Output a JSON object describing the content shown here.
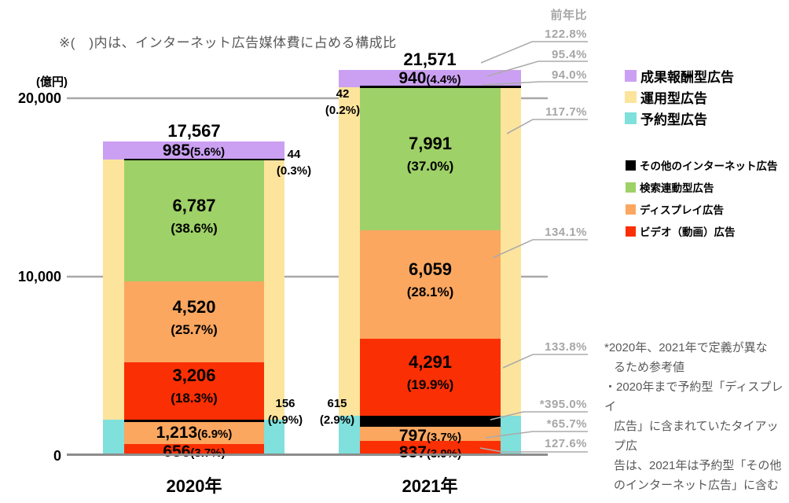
{
  "note": "※(　)内は、インターネット広告媒体費に占める構成比",
  "y_axis": {
    "unit": "(億円)"
  },
  "yoy": {
    "header": "前年比",
    "items": [
      {
        "value": "122.8%"
      },
      {
        "value": "95.4%"
      },
      {
        "value": "94.0%"
      },
      {
        "value": "117.7%"
      },
      {
        "value": "134.1%"
      },
      {
        "value": "133.8%"
      },
      {
        "value": "*395.0%"
      },
      {
        "value": "*65.7%"
      },
      {
        "value": "127.6%"
      }
    ]
  },
  "legend": {
    "primary": [
      {
        "key": "performance",
        "label": "成果報酬型広告",
        "color": "#cba0f2"
      },
      {
        "key": "programmatic",
        "label": "運用型広告",
        "color": "#fce49c"
      },
      {
        "key": "reserved",
        "label": "予約型広告",
        "color": "#7fe0dc"
      }
    ],
    "secondary": [
      {
        "key": "other",
        "label": "その他のインターネット広告",
        "color": "#000000"
      },
      {
        "key": "search",
        "label": "検索連動型広告",
        "color": "#9ed167"
      },
      {
        "key": "display",
        "label": "ディスプレイ広告",
        "color": "#fba760"
      },
      {
        "key": "video",
        "label": "ビデオ（動画）広告",
        "color": "#fb2f04"
      }
    ]
  },
  "footnotes": [
    {
      "text": "*2020年、2021年で定義が異な",
      "indent": false
    },
    {
      "text": "るため参考値",
      "indent": true
    },
    {
      "text": "・2020年まで予約型「ディスプレイ",
      "indent": false
    },
    {
      "text": "広告」に含まれていたタイアップ広",
      "indent": true
    },
    {
      "text": "告は、2021年は予約型「その他",
      "indent": true
    },
    {
      "text": "のインターネット広告」に含む",
      "indent": true
    }
  ],
  "chart_data": {
    "type": "bar",
    "stacked": true,
    "unit": "億円",
    "ylim": [
      0,
      20000
    ],
    "yticks": [
      {
        "value": 20000,
        "label": "20,000"
      },
      {
        "value": 10000,
        "label": "10,000"
      },
      {
        "value": 0,
        "label": "0"
      }
    ],
    "grid": true,
    "legend_position": "right",
    "categories": [
      "2020年",
      "2021年"
    ],
    "groups": [
      {
        "key": "performance",
        "name": "成果報酬型広告",
        "color": "#cba0f2"
      },
      {
        "key": "programmatic",
        "name": "運用型広告",
        "color": "#fce49c"
      },
      {
        "key": "reserved",
        "name": "予約型広告",
        "color": "#7fe0dc"
      }
    ],
    "bars": [
      {
        "category": "2020年",
        "total": {
          "value": 17567,
          "label": "17,567"
        },
        "background": [
          {
            "group": "reserved",
            "name": "予約型広告",
            "value": 2025
          },
          {
            "group": "programmatic",
            "name": "運用型広告",
            "value": 14557
          },
          {
            "group": "performance",
            "name": "成果報酬型広告",
            "value": 985,
            "num": "985",
            "pct": "(5.6%)"
          }
        ],
        "segments": [
          {
            "key": "video-reserved",
            "name": "ビデオ（動画）広告（予約型）",
            "value": 656,
            "color": "#fb2f04",
            "num": "656",
            "pct": "(3.7%)",
            "label": "inline",
            "dy": 2
          },
          {
            "key": "display-reserved",
            "name": "ディスプレイ広告（予約型）",
            "value": 1213,
            "color": "#fba760",
            "num": "1,213",
            "pct": "(6.9%)",
            "label": "inline",
            "dy": 0
          },
          {
            "key": "other-reserved",
            "name": "その他のインターネット広告（予約型）",
            "value": 156,
            "color": "#000000",
            "num": "156",
            "pct": "(0.9%)",
            "label": "side"
          },
          {
            "key": "video",
            "name": "ビデオ（動画）広告",
            "value": 3206,
            "color": "#fb2f04",
            "num": "3,206",
            "pct": "(18.3%)",
            "label": "stack"
          },
          {
            "key": "display",
            "name": "ディスプレイ広告",
            "value": 4520,
            "color": "#fba760",
            "num": "4,520",
            "pct": "(25.7%)",
            "label": "stack"
          },
          {
            "key": "search",
            "name": "検索連動型広告",
            "value": 6787,
            "color": "#9ed167",
            "num": "6,787",
            "pct": "(38.6%)",
            "label": "stack"
          },
          {
            "key": "other-programmatic",
            "name": "その他のインターネット広告（運用型）",
            "value": 44,
            "color": "#000000",
            "num": "44",
            "pct": "(0.3%)",
            "label": "side",
            "extend_right": true
          }
        ]
      },
      {
        "category": "2021年",
        "total": {
          "value": 21571,
          "label": "21,571"
        },
        "background": [
          {
            "group": "reserved",
            "name": "予約型広告",
            "value": 2249
          },
          {
            "group": "programmatic",
            "name": "運用型広告",
            "value": 18383
          },
          {
            "group": "performance",
            "name": "成果報酬型広告",
            "value": 940,
            "num": "940",
            "pct": "(4.4%)"
          }
        ],
        "segments": [
          {
            "key": "video-reserved",
            "name": "ビデオ（動画）広告（予約型）",
            "value": 837,
            "color": "#fb2f04",
            "num": "837",
            "pct": "(3.9%)",
            "label": "inline",
            "dy": 6
          },
          {
            "key": "display-reserved",
            "name": "ディスプレイ広告（予約型）",
            "value": 797,
            "color": "#fba760",
            "num": "797",
            "pct": "(3.7%)",
            "label": "inline",
            "dy": 3
          },
          {
            "key": "other-reserved",
            "name": "その他のインターネット広告（予約型）",
            "value": 615,
            "color": "#000000",
            "num": "615",
            "pct": "(2.9%)",
            "label": "side"
          },
          {
            "key": "video",
            "name": "ビデオ（動画）広告",
            "value": 4291,
            "color": "#fb2f04",
            "num": "4,291",
            "pct": "(19.9%)",
            "label": "stack"
          },
          {
            "key": "display",
            "name": "ディスプレイ広告",
            "value": 6059,
            "color": "#fba760",
            "num": "6,059",
            "pct": "(28.1%)",
            "label": "stack"
          },
          {
            "key": "search",
            "name": "検索連動型広告",
            "value": 7991,
            "color": "#9ed167",
            "num": "7,991",
            "pct": "(37.0%)",
            "label": "stack"
          },
          {
            "key": "other-programmatic",
            "name": "その他のインターネット広告（運用型）",
            "value": 42,
            "color": "#000000",
            "num": "42",
            "pct": "(0.2%)",
            "label": "side",
            "extend_right": true
          }
        ]
      }
    ]
  }
}
